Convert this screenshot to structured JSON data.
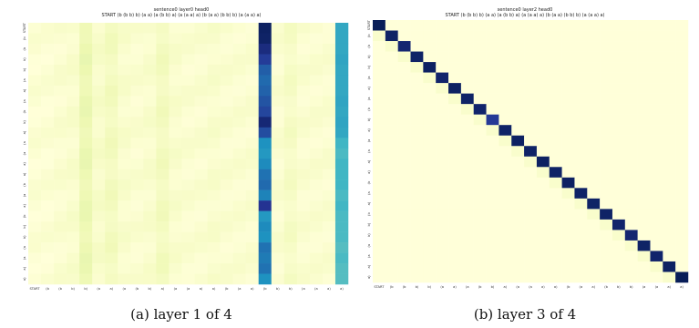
{
  "chart_data": [
    {
      "type": "heatmap",
      "title_line1": "sentence0 layer0 head0",
      "title_line2": "START (b (b b) b) (a a) (a (b b) a) (a (a a) a) (b (a a) (b b) b) (a (a a) a)",
      "caption": "(a) layer 1 of 4",
      "x_tick_labels": [
        "START",
        "(b",
        "(b",
        "b)",
        "b)",
        "(a",
        "a)",
        "(a",
        "(b",
        "b)",
        "a)",
        "(a",
        "(a",
        "a)",
        "a)",
        "(b",
        "(a",
        "a)",
        "(b",
        "b)",
        "b)",
        "(a",
        "(a",
        "a)",
        "a)"
      ],
      "y_tick_labels": [
        "START",
        "(b",
        "(b",
        "b)",
        "b)",
        "(a",
        "a)",
        "(a",
        "(b",
        "b)",
        "a)",
        "(a",
        "(a",
        "a)",
        "a)",
        "(b",
        "(a",
        "a)",
        "(b",
        "b)",
        "b)",
        "(a",
        "(a",
        "a)",
        "a)"
      ],
      "column_weights": [
        0.02,
        0.02,
        0.03,
        0.04,
        0.12,
        0.05,
        0.08,
        0.04,
        0.03,
        0.04,
        0.08,
        0.04,
        0.03,
        0.03,
        0.04,
        0.03,
        0.03,
        0.03,
        0.8,
        0.03,
        0.06,
        0.03,
        0.03,
        0.03,
        0.5
      ],
      "row_spike_levels": [
        0.98,
        0.97,
        0.92,
        0.85,
        0.75,
        0.72,
        0.74,
        0.78,
        0.82,
        0.94,
        0.8,
        0.62,
        0.6,
        0.64,
        0.7,
        0.72,
        0.66,
        0.88,
        0.6,
        0.64,
        0.62,
        0.7,
        0.68,
        0.7,
        0.62
      ],
      "row_secondary_levels": [
        0.55,
        0.55,
        0.55,
        0.56,
        0.55,
        0.55,
        0.55,
        0.56,
        0.55,
        0.56,
        0.55,
        0.5,
        0.48,
        0.5,
        0.5,
        0.5,
        0.48,
        0.5,
        0.48,
        0.48,
        0.48,
        0.46,
        0.48,
        0.46,
        0.46
      ],
      "spike_column": 18,
      "secondary_column": 24,
      "colormap": "YlGnBu",
      "colorbar": false
    },
    {
      "type": "heatmap",
      "title_line1": "sentence0 layer2 head0",
      "title_line2": "START (b (b b) b) (a a) (a (b b) a) (a (a a) a) (b (a a) (b b) b) (a (a a) a)",
      "caption": "(b) layer 3 of 4",
      "x_tick_labels": [
        "START",
        "(b",
        "(b",
        "b)",
        "b)",
        "(a",
        "a)",
        "(a",
        "(b",
        "b)",
        "a)",
        "(a",
        "(a",
        "a)",
        "a)",
        "(b",
        "(a",
        "a)",
        "(b",
        "b)",
        "b)",
        "(a",
        "(a",
        "a)",
        "a)"
      ],
      "y_tick_labels": [
        "START",
        "(b",
        "(b",
        "b)",
        "b)",
        "(a",
        "a)",
        "(a",
        "(b",
        "b)",
        "a)",
        "(a",
        "(a",
        "a)",
        "a)",
        "(b",
        "(a",
        "a)",
        "(b",
        "b)",
        "b)",
        "(a",
        "(a",
        "a)",
        "a)"
      ],
      "diagonal_values": [
        1.0,
        0.97,
        0.95,
        0.97,
        0.98,
        0.96,
        0.98,
        0.97,
        0.96,
        0.86,
        0.97,
        0.98,
        0.97,
        0.98,
        0.97,
        0.98,
        0.97,
        0.97,
        0.97,
        0.96,
        0.95,
        0.97,
        0.96,
        0.98,
        1.0
      ],
      "subdiagonal_value": 0.04,
      "colormap": "YlGnBu",
      "colorbar": false
    }
  ]
}
